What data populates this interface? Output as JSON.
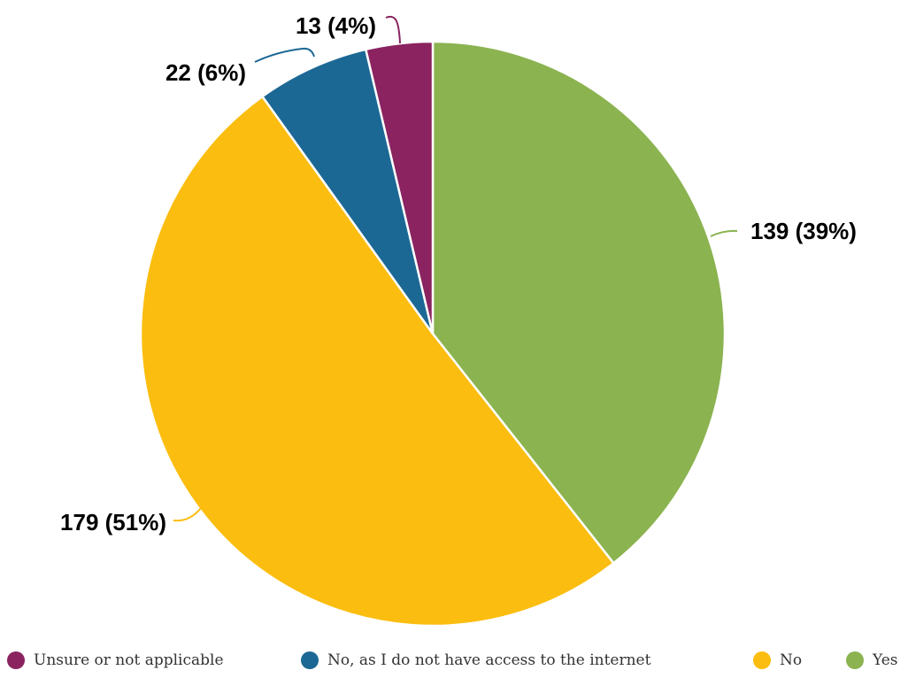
{
  "chart_data": {
    "type": "pie",
    "title": "",
    "slices": [
      {
        "label": "Yes",
        "value": 139,
        "data_label": "139 (39%)",
        "color": "#8bb350"
      },
      {
        "label": "No",
        "value": 179,
        "data_label": "179 (51%)",
        "color": "#fbbd0f"
      },
      {
        "label": "No, as I do not have access to the internet",
        "value": 22,
        "data_label": "22 (6%)",
        "color": "#1c6895"
      },
      {
        "label": "Unsure or not applicable",
        "value": 13,
        "data_label": "13 (4%)",
        "color": "#8a2360"
      }
    ],
    "legend": {
      "placement": "bottom",
      "entries": [
        {
          "label": "Unsure or not applicable",
          "color": "#8a2360"
        },
        {
          "label": "No, as I do not have access to the internet",
          "color": "#1c6895"
        },
        {
          "label": "No",
          "color": "#fbbd0f"
        },
        {
          "label": "Yes",
          "color": "#8bb350"
        }
      ]
    }
  }
}
